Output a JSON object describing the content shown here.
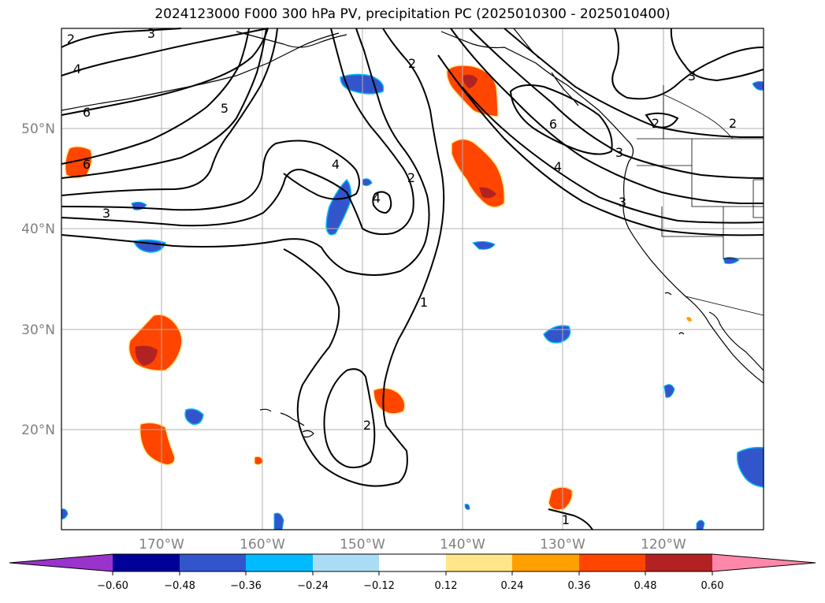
{
  "title": "2024123000 F000 300 hPa PV, precipitation PC (2025010300 - 2025010400)",
  "map": {
    "lat_labels": [
      "50°N",
      "40°N",
      "30°N",
      "20°N"
    ],
    "lon_labels": [
      "170°W",
      "160°W",
      "150°W",
      "140°W",
      "130°W",
      "120°W"
    ],
    "pv_contour_labels": [
      "2",
      "3",
      "4",
      "6",
      "5",
      "2",
      "4",
      "4",
      "2",
      "2",
      "6",
      "4",
      "3",
      "3",
      "2",
      "3",
      "1",
      "2",
      "1",
      "6",
      "3"
    ]
  },
  "colorbar": {
    "colors": [
      "#9933cc",
      "#000099",
      "#3355cc",
      "#00bbff",
      "#aaddf5",
      "#ffffff",
      "#ffe68a",
      "#ffa000",
      "#ff4500",
      "#b22222",
      "#ff88aa"
    ],
    "tick_labels": [
      "−0.60",
      "−0.48",
      "−0.36",
      "−0.24",
      "−0.12",
      "0.12",
      "0.24",
      "0.36",
      "0.48",
      "0.60"
    ]
  }
}
